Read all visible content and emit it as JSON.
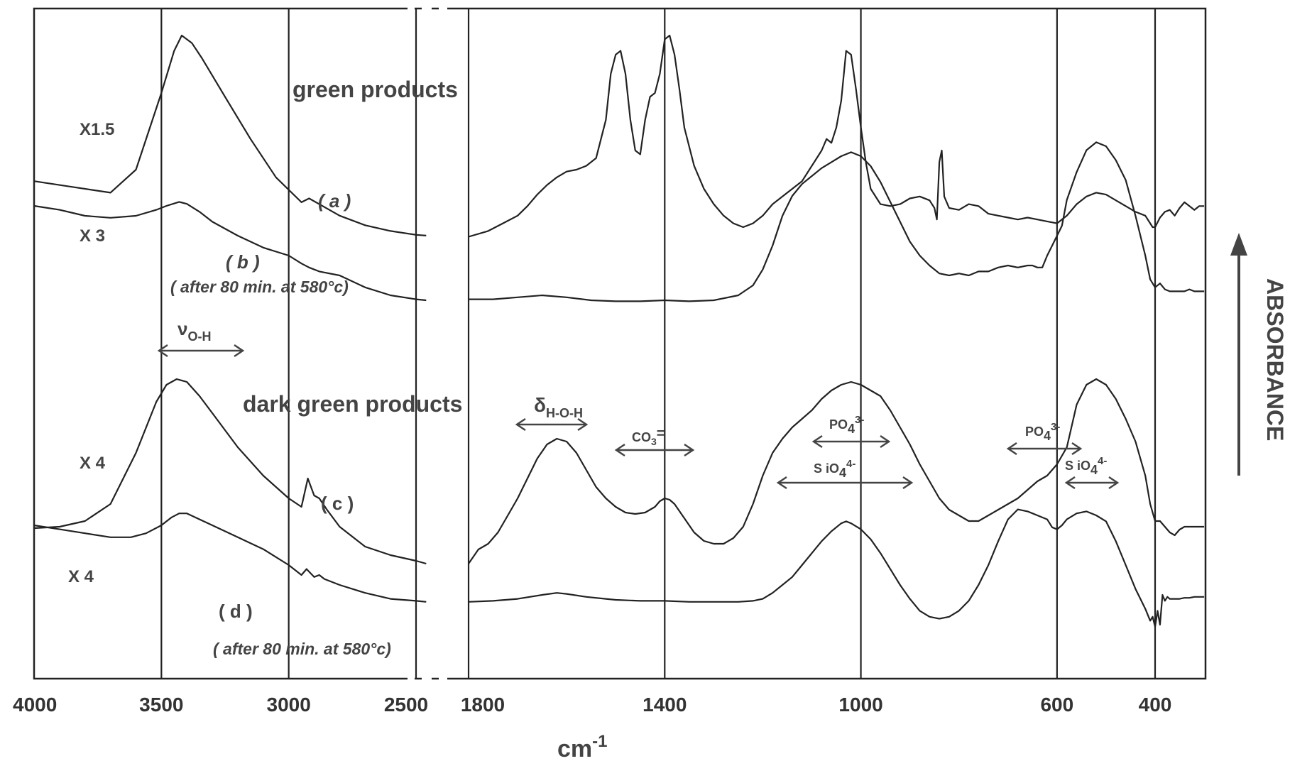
{
  "chart_data": {
    "type": "line",
    "xlabel": "cm",
    "xlabel_exp": "-1",
    "ylabel": "ABSORBANCE",
    "x_axis_break": "between 2500 and 1800 cm-1",
    "x_ticks": [
      "4000",
      "3500",
      "3000",
      "2500",
      "1800",
      "1400",
      "1000",
      "600",
      "400"
    ],
    "grid_x": [
      3500,
      3000,
      2500,
      1800,
      1400,
      1000,
      600,
      400
    ],
    "labels": {
      "green": "green products",
      "dark_green": "dark green products",
      "vOH_main": "ν",
      "vOH_sub": "O-H",
      "dHOH_main": "δ",
      "dHOH_sub": "H-O-H",
      "co3": "CO",
      "co3_sub": "3",
      "co3_sup": "=",
      "po4_main": "PO",
      "po4_sub": "4",
      "po4_sup": "3-",
      "sio4_main": "S iO",
      "sio4_sub": "4",
      "sio4_sup": "4-",
      "po4b_main": "PO",
      "po4b_sub": "4",
      "po4b_sup": "3-",
      "sio4b_main": "S iO",
      "sio4b_sub": "4",
      "sio4b_sup": "4-",
      "a": "( a )",
      "b": "( b )",
      "b_note": "( after 80 min. at 580°c)",
      "c": "( c )",
      "d": "( d )",
      "d_note": "( after 80 min. at 580°c)",
      "scale_a": "X1.5",
      "scale_b": "X 3",
      "scale_c": "X 4",
      "scale_d": "X 4"
    },
    "series": [
      {
        "name": "(a)",
        "scale": "X1.5",
        "x": [
          4000,
          3850,
          3700,
          3600,
          3500,
          3450,
          3420,
          3380,
          3340,
          3250,
          3150,
          3050,
          2950,
          2920,
          2880,
          2800,
          2700,
          2600,
          2500,
          2460,
          1800,
          1760,
          1730,
          1700,
          1680,
          1660,
          1640,
          1620,
          1600,
          1580,
          1560,
          1540,
          1520,
          1510,
          1500,
          1490,
          1480,
          1470,
          1460,
          1450,
          1440,
          1430,
          1420,
          1410,
          1400,
          1390,
          1380,
          1370,
          1360,
          1340,
          1320,
          1300,
          1280,
          1260,
          1240,
          1220,
          1200,
          1180,
          1160,
          1140,
          1120,
          1100,
          1080,
          1070,
          1060,
          1050,
          1040,
          1030,
          1020,
          1010,
          1000,
          990,
          980,
          960,
          940,
          920,
          900,
          880,
          860,
          850,
          845,
          840,
          835,
          830,
          820,
          800,
          780,
          760,
          740,
          720,
          700,
          680,
          660,
          640,
          620,
          600,
          580,
          560,
          540,
          520,
          500,
          480,
          460,
          440,
          420,
          410,
          405,
          400,
          390,
          380,
          370,
          360,
          350,
          340,
          330,
          320,
          310,
          300
        ],
        "y": [
          0.62,
          0.605,
          0.59,
          0.65,
          0.85,
          0.96,
          1.0,
          0.98,
          0.94,
          0.84,
          0.73,
          0.63,
          0.565,
          0.575,
          0.56,
          0.53,
          0.505,
          0.49,
          0.48,
          0.478,
          0.475,
          0.49,
          0.51,
          0.53,
          0.555,
          0.585,
          0.61,
          0.63,
          0.645,
          0.65,
          0.66,
          0.68,
          0.78,
          0.9,
          0.95,
          0.96,
          0.9,
          0.78,
          0.7,
          0.69,
          0.78,
          0.84,
          0.85,
          0.9,
          0.99,
          1.0,
          0.95,
          0.86,
          0.76,
          0.66,
          0.6,
          0.56,
          0.53,
          0.51,
          0.5,
          0.51,
          0.53,
          0.56,
          0.58,
          0.6,
          0.62,
          0.66,
          0.7,
          0.73,
          0.72,
          0.76,
          0.83,
          0.96,
          0.95,
          0.86,
          0.76,
          0.67,
          0.6,
          0.56,
          0.555,
          0.56,
          0.575,
          0.58,
          0.57,
          0.55,
          0.52,
          0.67,
          0.7,
          0.58,
          0.55,
          0.545,
          0.56,
          0.555,
          0.535,
          0.53,
          0.525,
          0.52,
          0.525,
          0.52,
          0.515,
          0.51,
          0.53,
          0.56,
          0.58,
          0.59,
          0.585,
          0.57,
          0.555,
          0.54,
          0.53,
          0.51,
          0.5,
          0.5,
          0.525,
          0.54,
          0.545,
          0.53,
          0.55,
          0.565,
          0.555,
          0.545,
          0.555,
          0.555
        ]
      },
      {
        "name": "(b)",
        "scale": "X 3",
        "note": "after 80 min. at 580°c",
        "x": [
          4000,
          3900,
          3800,
          3700,
          3600,
          3520,
          3480,
          3430,
          3400,
          3350,
          3300,
          3200,
          3100,
          3000,
          2950,
          2920,
          2880,
          2800,
          2700,
          2600,
          2500,
          2460,
          1800,
          1750,
          1700,
          1650,
          1600,
          1550,
          1500,
          1450,
          1400,
          1350,
          1300,
          1250,
          1220,
          1200,
          1180,
          1160,
          1140,
          1120,
          1100,
          1080,
          1060,
          1040,
          1020,
          1000,
          980,
          960,
          940,
          920,
          900,
          880,
          860,
          840,
          820,
          800,
          780,
          760,
          740,
          720,
          700,
          680,
          660,
          650,
          640,
          630,
          620,
          610,
          600,
          590,
          580,
          560,
          540,
          520,
          500,
          480,
          460,
          440,
          420,
          410,
          400,
          390,
          380,
          370,
          360,
          350,
          340,
          330,
          320,
          300
        ],
        "y": [
          0.25,
          0.23,
          0.2,
          0.19,
          0.2,
          0.23,
          0.25,
          0.27,
          0.26,
          0.22,
          0.17,
          0.1,
          0.04,
          0.0,
          -0.04,
          -0.06,
          -0.08,
          -0.1,
          -0.16,
          -0.2,
          -0.22,
          -0.225,
          -0.22,
          -0.22,
          -0.21,
          -0.2,
          -0.21,
          -0.225,
          -0.23,
          -0.23,
          -0.225,
          -0.23,
          -0.225,
          -0.2,
          -0.15,
          -0.07,
          0.05,
          0.2,
          0.3,
          0.36,
          0.4,
          0.44,
          0.47,
          0.5,
          0.52,
          0.5,
          0.45,
          0.37,
          0.27,
          0.17,
          0.07,
          0.0,
          -0.05,
          -0.09,
          -0.1,
          -0.09,
          -0.1,
          -0.08,
          -0.08,
          -0.06,
          -0.05,
          -0.06,
          -0.05,
          -0.05,
          -0.06,
          -0.06,
          0.0,
          0.05,
          0.1,
          0.15,
          0.28,
          0.42,
          0.53,
          0.57,
          0.55,
          0.48,
          0.38,
          0.2,
          0.0,
          -0.12,
          -0.16,
          -0.14,
          -0.17,
          -0.18,
          -0.18,
          -0.18,
          -0.18,
          -0.17,
          -0.18,
          -0.18
        ]
      },
      {
        "name": "(c)",
        "scale": "X 4",
        "x": [
          4000,
          3900,
          3800,
          3700,
          3600,
          3520,
          3480,
          3440,
          3400,
          3350,
          3300,
          3200,
          3100,
          3000,
          2950,
          2925,
          2900,
          2880,
          2850,
          2800,
          2700,
          2600,
          2500,
          2460,
          1800,
          1780,
          1760,
          1740,
          1720,
          1700,
          1680,
          1660,
          1640,
          1620,
          1600,
          1580,
          1560,
          1540,
          1520,
          1500,
          1480,
          1460,
          1440,
          1420,
          1410,
          1400,
          1390,
          1380,
          1360,
          1340,
          1320,
          1300,
          1280,
          1260,
          1240,
          1220,
          1200,
          1180,
          1160,
          1140,
          1120,
          1100,
          1080,
          1060,
          1040,
          1020,
          1000,
          980,
          960,
          940,
          920,
          900,
          880,
          860,
          840,
          820,
          800,
          780,
          760,
          740,
          720,
          700,
          680,
          660,
          640,
          620,
          600,
          580,
          560,
          540,
          520,
          500,
          480,
          460,
          440,
          420,
          410,
          400,
          390,
          380,
          370,
          360,
          350,
          340,
          330,
          320,
          300
        ],
        "y": [
          0.115,
          0.12,
          0.14,
          0.2,
          0.38,
          0.56,
          0.62,
          0.64,
          0.63,
          0.58,
          0.52,
          0.4,
          0.3,
          0.22,
          0.19,
          0.29,
          0.23,
          0.22,
          0.18,
          0.12,
          0.05,
          0.02,
          0.0,
          -0.01,
          -0.01,
          0.04,
          0.06,
          0.1,
          0.16,
          0.22,
          0.29,
          0.36,
          0.41,
          0.43,
          0.42,
          0.38,
          0.32,
          0.26,
          0.22,
          0.19,
          0.17,
          0.165,
          0.17,
          0.19,
          0.21,
          0.22,
          0.215,
          0.2,
          0.15,
          0.1,
          0.07,
          0.06,
          0.06,
          0.08,
          0.12,
          0.2,
          0.3,
          0.38,
          0.43,
          0.47,
          0.5,
          0.53,
          0.57,
          0.6,
          0.62,
          0.63,
          0.62,
          0.6,
          0.58,
          0.53,
          0.47,
          0.41,
          0.34,
          0.28,
          0.22,
          0.18,
          0.16,
          0.14,
          0.14,
          0.16,
          0.18,
          0.2,
          0.22,
          0.25,
          0.28,
          0.3,
          0.34,
          0.4,
          0.55,
          0.62,
          0.64,
          0.62,
          0.57,
          0.5,
          0.42,
          0.3,
          0.2,
          0.14,
          0.14,
          0.12,
          0.1,
          0.09,
          0.11,
          0.12,
          0.12,
          0.12,
          0.12
        ]
      },
      {
        "name": "(d)",
        "scale": "X 4",
        "note": "after 80 min. at 580°c",
        "x": [
          4000,
          3900,
          3800,
          3700,
          3620,
          3560,
          3500,
          3460,
          3430,
          3400,
          3350,
          3300,
          3200,
          3100,
          3000,
          2950,
          2930,
          2900,
          2880,
          2860,
          2800,
          2700,
          2600,
          2500,
          2460,
          1800,
          1750,
          1700,
          1650,
          1620,
          1600,
          1560,
          1520,
          1500,
          1450,
          1400,
          1350,
          1300,
          1250,
          1220,
          1200,
          1180,
          1160,
          1140,
          1120,
          1100,
          1080,
          1060,
          1040,
          1030,
          1020,
          1000,
          980,
          960,
          940,
          920,
          900,
          880,
          860,
          840,
          820,
          800,
          780,
          760,
          740,
          720,
          700,
          680,
          660,
          650,
          640,
          620,
          610,
          600,
          590,
          580,
          560,
          540,
          520,
          500,
          480,
          460,
          440,
          420,
          410,
          405,
          400,
          395,
          390,
          385,
          380,
          375,
          370,
          360,
          350,
          340,
          330,
          320,
          300
        ],
        "y": [
          0.0,
          -0.02,
          -0.04,
          -0.06,
          -0.06,
          -0.04,
          0.0,
          0.04,
          0.06,
          0.06,
          0.03,
          0.0,
          -0.06,
          -0.12,
          -0.2,
          -0.25,
          -0.22,
          -0.26,
          -0.25,
          -0.27,
          -0.3,
          -0.34,
          -0.37,
          -0.38,
          -0.385,
          -0.385,
          -0.38,
          -0.37,
          -0.35,
          -0.34,
          -0.345,
          -0.36,
          -0.37,
          -0.375,
          -0.38,
          -0.38,
          -0.385,
          -0.385,
          -0.385,
          -0.38,
          -0.37,
          -0.34,
          -0.3,
          -0.26,
          -0.2,
          -0.14,
          -0.08,
          -0.03,
          0.01,
          0.02,
          0.01,
          -0.02,
          -0.07,
          -0.14,
          -0.22,
          -0.3,
          -0.37,
          -0.43,
          -0.46,
          -0.47,
          -0.46,
          -0.43,
          -0.38,
          -0.3,
          -0.2,
          -0.08,
          0.03,
          0.08,
          0.07,
          0.06,
          0.05,
          0.03,
          -0.01,
          -0.02,
          0.0,
          0.03,
          0.06,
          0.07,
          0.05,
          0.02,
          -0.08,
          -0.2,
          -0.32,
          -0.42,
          -0.48,
          -0.46,
          -0.51,
          -0.43,
          -0.5,
          -0.35,
          -0.38,
          -0.36,
          -0.37,
          -0.37,
          -0.37,
          -0.365,
          -0.365,
          -0.36,
          -0.36
        ]
      }
    ]
  }
}
